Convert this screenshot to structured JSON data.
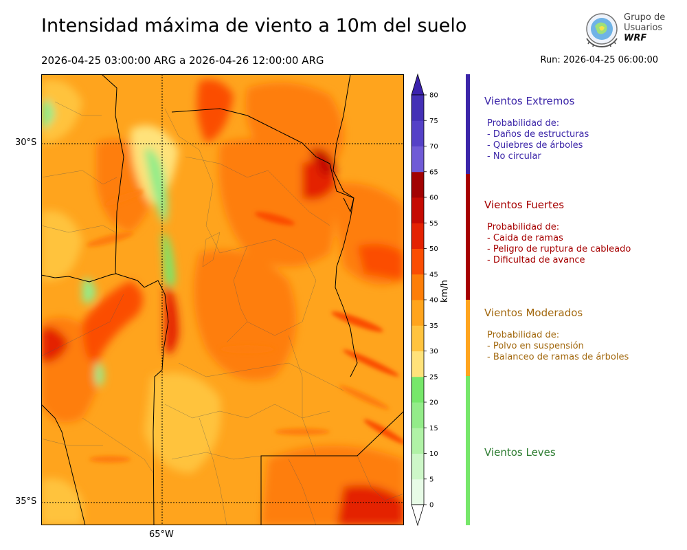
{
  "header": {
    "title": "Intensidad máxima de viento a 10m del suelo",
    "period": "2026-04-25 03:00:00 ARG  a  2026-04-26 12:00:00 ARG",
    "run": "Run: 2026-04-25 06:00:00"
  },
  "logo": {
    "line1": "Grupo de",
    "line2": "Usuarios",
    "line3": "WRF"
  },
  "map": {
    "lat_labels": [
      "30°S",
      "35°S"
    ],
    "lon_labels": [
      "65°W"
    ]
  },
  "colorbar": {
    "units": "km/h",
    "levels": [
      "0",
      "5",
      "10",
      "15",
      "20",
      "25",
      "30",
      "35",
      "40",
      "45",
      "50",
      "55",
      "60",
      "65",
      "70",
      "75",
      "80"
    ],
    "colors": [
      "#e7fbe6",
      "#cdf7c8",
      "#b0f2a6",
      "#93ec89",
      "#76e76a",
      "#ffe27a",
      "#ffc33e",
      "#ffa41d",
      "#fe7e08",
      "#fb4d03",
      "#e42202",
      "#c50a02",
      "#a20202",
      "#705bd6",
      "#5541c7",
      "#4430b6"
    ],
    "extend_low_color": "#ffffff",
    "extend_high_color": "#3b22ad"
  },
  "categories": [
    {
      "name": "Vientos Extremos",
      "color": "#3b25a8",
      "text_color": "#3b25a8",
      "desc_title": "Probabilidad de:",
      "items": [
        "- Daños de estructuras",
        "- Quiebres de árboles",
        "- No circular"
      ]
    },
    {
      "name": "Vientos Fuertes",
      "color": "#a60000",
      "text_color": "#a60000",
      "desc_title": "Probabilidad de:",
      "items": [
        "- Caida de ramas",
        "- Peligro de ruptura de cableado",
        "- Dificultad de avance"
      ]
    },
    {
      "name": "Vientos Moderados",
      "color": "#ffa41d",
      "text_color": "#a2680e",
      "desc_title": "Probabilidad de:",
      "items": [
        "- Polvo en suspensión",
        "- Balanceo de ramas de árboles"
      ]
    },
    {
      "name": "Vientos Leves",
      "color": "#76e76a",
      "text_color": "#2e7d32",
      "desc_title": "",
      "items": []
    }
  ]
}
